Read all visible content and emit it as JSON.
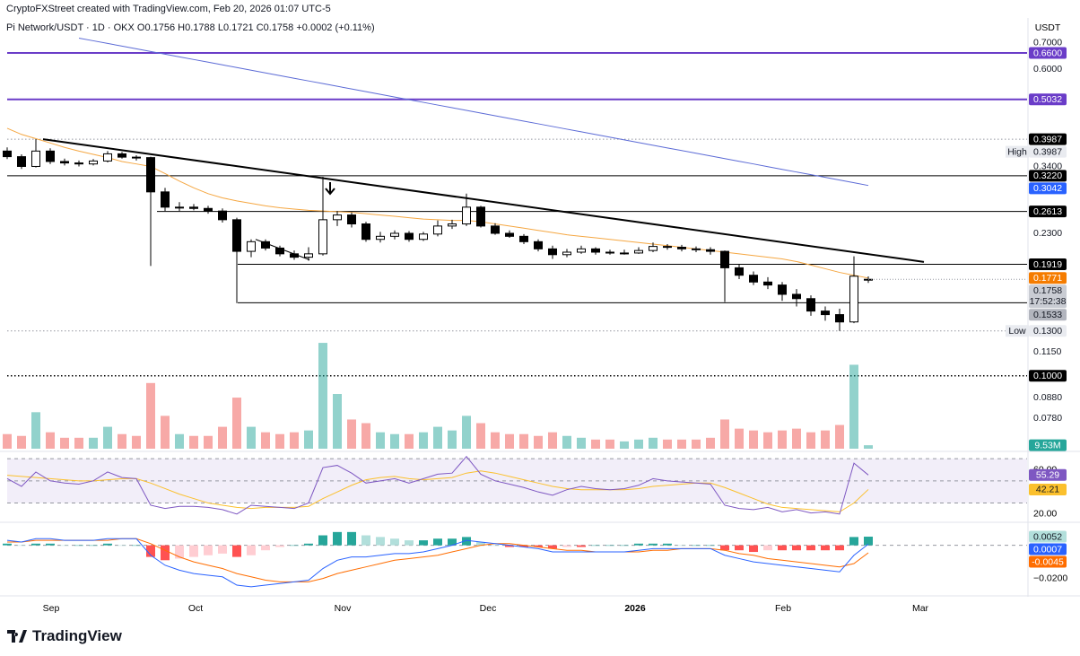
{
  "header": {
    "credit": "CryptoFXStreet created with TradingView.com, Feb 20, 2026 01:07 UTC-5",
    "symbol": "Pi Network/USDT · 1D · OKX",
    "ohlc_labels": [
      "O",
      "H",
      "L",
      "C"
    ],
    "change": "+0.0002 (+0.11%)",
    "currency": "USDT"
  },
  "chart_data": {
    "type": "candlestick",
    "scale": "log",
    "xticks": [
      "Sep",
      "Oct",
      "Nov",
      "Dec",
      "2026",
      "Feb",
      "Mar"
    ],
    "ylim": [
      0.0653,
      0.737
    ],
    "yticks": [
      {
        "value": 0.7,
        "label": "0.7000"
      },
      {
        "value": 0.6,
        "label": "0.6000"
      },
      {
        "value": 0.34,
        "label": "0.3400"
      },
      {
        "value": 0.23,
        "label": "0.2300"
      },
      {
        "value": 0.115,
        "label": "0.1150"
      },
      {
        "value": 0.088,
        "label": "0.0880"
      },
      {
        "value": 0.078,
        "label": "0.0780"
      }
    ],
    "candle_colors": {
      "up": "#ffffff",
      "down": "#000000",
      "outline": "#000000"
    },
    "candles": {
      "open": [
        0.372,
        0.36,
        0.34,
        0.372,
        0.35,
        0.347,
        0.345,
        0.351,
        0.366,
        0.359,
        0.358,
        0.293,
        0.268,
        0.268,
        0.266,
        0.262,
        0.249,
        0.207,
        0.219,
        0.211,
        0.204,
        0.2,
        0.204,
        0.249,
        0.256,
        0.243,
        0.222,
        0.226,
        0.23,
        0.222,
        0.229,
        0.24,
        0.243,
        0.268,
        0.24,
        0.23,
        0.226,
        0.219,
        0.21,
        0.203,
        0.206,
        0.21,
        0.206,
        0.205,
        0.205,
        0.208,
        0.213,
        0.212,
        0.21,
        0.209,
        0.207,
        0.188,
        0.18,
        0.173,
        0.17,
        0.161,
        0.157,
        0.146,
        0.143,
        0.137,
        0.1756
      ],
      "high": [
        0.38,
        0.365,
        0.399,
        0.378,
        0.356,
        0.352,
        0.355,
        0.372,
        0.37,
        0.363,
        0.36,
        0.3,
        0.276,
        0.273,
        0.27,
        0.266,
        0.252,
        0.222,
        0.222,
        0.214,
        0.208,
        0.212,
        0.32,
        0.262,
        0.26,
        0.246,
        0.232,
        0.234,
        0.233,
        0.232,
        0.248,
        0.249,
        0.29,
        0.27,
        0.244,
        0.234,
        0.229,
        0.222,
        0.214,
        0.21,
        0.214,
        0.212,
        0.209,
        0.209,
        0.212,
        0.218,
        0.216,
        0.215,
        0.213,
        0.212,
        0.208,
        0.192,
        0.184,
        0.178,
        0.173,
        0.166,
        0.16,
        0.15,
        0.148,
        0.201,
        0.1788
      ],
      "low": [
        0.355,
        0.335,
        0.338,
        0.345,
        0.342,
        0.34,
        0.342,
        0.348,
        0.356,
        0.352,
        0.19,
        0.262,
        0.262,
        0.263,
        0.258,
        0.245,
        0.153,
        0.2,
        0.208,
        0.201,
        0.197,
        0.196,
        0.202,
        0.24,
        0.238,
        0.219,
        0.218,
        0.222,
        0.219,
        0.22,
        0.226,
        0.236,
        0.24,
        0.238,
        0.228,
        0.224,
        0.216,
        0.207,
        0.198,
        0.2,
        0.204,
        0.203,
        0.203,
        0.203,
        0.204,
        0.206,
        0.209,
        0.207,
        0.206,
        0.203,
        0.154,
        0.176,
        0.17,
        0.166,
        0.155,
        0.15,
        0.142,
        0.138,
        0.13,
        0.136,
        0.1721
      ],
      "close": [
        0.36,
        0.34,
        0.372,
        0.35,
        0.347,
        0.345,
        0.351,
        0.366,
        0.359,
        0.358,
        0.293,
        0.268,
        0.268,
        0.266,
        0.262,
        0.249,
        0.207,
        0.219,
        0.211,
        0.204,
        0.2,
        0.204,
        0.249,
        0.256,
        0.243,
        0.222,
        0.226,
        0.23,
        0.222,
        0.229,
        0.24,
        0.243,
        0.268,
        0.24,
        0.23,
        0.226,
        0.219,
        0.21,
        0.203,
        0.206,
        0.21,
        0.206,
        0.205,
        0.205,
        0.208,
        0.213,
        0.212,
        0.21,
        0.209,
        0.207,
        0.188,
        0.18,
        0.173,
        0.17,
        0.161,
        0.157,
        0.146,
        0.143,
        0.137,
        0.179,
        0.1758
      ]
    },
    "countdown": "17:52:38",
    "last_tag_color": "#c9ccd3",
    "moving_averages": [
      {
        "color": "#f5a742",
        "values": [
          0.425,
          0.41,
          0.4,
          0.39,
          0.38,
          0.372,
          0.365,
          0.358,
          0.35,
          0.345,
          0.34,
          0.326,
          0.312,
          0.3,
          0.29,
          0.283,
          0.278,
          0.274,
          0.27,
          0.267,
          0.265,
          0.263,
          0.262,
          0.261,
          0.26,
          0.258,
          0.256,
          0.254,
          0.252,
          0.25,
          0.249,
          0.248,
          0.248,
          0.246,
          0.243,
          0.24,
          0.237,
          0.234,
          0.231,
          0.228,
          0.226,
          0.224,
          0.222,
          0.22,
          0.218,
          0.216,
          0.214,
          0.212,
          0.21,
          0.208,
          0.206,
          0.204,
          0.202,
          0.2,
          0.198,
          0.195,
          0.191,
          0.187,
          0.183,
          0.18,
          0.1771
        ],
        "tag_color": "#f57c00"
      },
      {
        "color": "#5c6bd6",
        "values": [
          null,
          null,
          null,
          null,
          null,
          0.72,
          0.7088,
          0.6978,
          0.687,
          0.6763,
          0.6658,
          0.6555,
          0.6453,
          0.6353,
          0.6254,
          0.6157,
          0.6061,
          0.5967,
          0.5874,
          0.5783,
          0.5693,
          0.5605,
          0.5518,
          0.5432,
          0.5348,
          0.5265,
          0.5183,
          0.5102,
          0.5023,
          0.4945,
          0.4868,
          0.4793,
          0.4718,
          0.4645,
          0.4573,
          0.4502,
          0.4432,
          0.4363,
          0.4295,
          0.4228,
          0.4163,
          0.4098,
          0.4034,
          0.3972,
          0.391,
          0.3849,
          0.3789,
          0.3731,
          0.3673,
          0.3616,
          0.3559,
          0.3504,
          0.345,
          0.3396,
          0.3343,
          0.3291,
          0.324,
          0.319,
          0.314,
          0.3091,
          0.3042
        ],
        "tag_color": "#2962ff"
      }
    ],
    "trendlines": [
      {
        "color": "#000000",
        "values": [
          0.3987,
          0.1946
        ]
      },
      {
        "color": "#000000",
        "values": [
          0.222,
          0.197
        ]
      }
    ],
    "levels": [
      {
        "value": 0.66,
        "label": "0.6600",
        "color": "#6a3cc8",
        "line": "solid",
        "tag_bg": "#6a3cc8",
        "tag_text": "#ffffff"
      },
      {
        "value": 0.5032,
        "label": "0.5032",
        "color": "#6a3cc8",
        "line": "solid",
        "tag_bg": "#6a3cc8",
        "tag_text": "#ffffff"
      },
      {
        "value": 0.3987,
        "label": "0.3987",
        "color": "#000000",
        "line": "none",
        "tag_bg": "#000000",
        "tag_text": "#ffffff"
      },
      {
        "value": 0.3987,
        "label": "0.3987",
        "color": "#9598a1",
        "line": "dotted",
        "tag": "High",
        "tag_bg": "#e9ebf0",
        "tag_text": "#131722"
      },
      {
        "value": 0.322,
        "label": "0.3220",
        "color": "#000000",
        "line": "solid",
        "tag_bg": "#000000",
        "tag_text": "#ffffff"
      },
      {
        "value": 0.2613,
        "label": "0.2613",
        "color": "#000000",
        "line": "solid",
        "tag_bg": "#000000",
        "tag_text": "#ffffff"
      },
      {
        "value": 0.1919,
        "label": "0.1919",
        "color": "#000000",
        "line": "solid",
        "tag_bg": "#000000",
        "tag_text": "#ffffff"
      },
      {
        "value": 0.1533,
        "label": "0.1533",
        "color": "#000000",
        "line": "solid",
        "tag_bg": "#b2b5be",
        "tag_text": "#131722"
      },
      {
        "value": 0.13,
        "label": "0.1300",
        "color": "#9598a1",
        "line": "dotted",
        "tag": "Low",
        "tag_bg": "#e9ebf0",
        "tag_text": "#131722"
      },
      {
        "value": 0.1,
        "label": "0.1000",
        "color": "#000000",
        "line": "dotted",
        "tag_bg": "#000000",
        "tag_text": "#ffffff"
      }
    ],
    "volume": {
      "ylim": [
        0,
        300
      ],
      "up_color": "rgba(38,166,154,0.5)",
      "down_color": "rgba(239,83,80,0.5)",
      "tag_color": "#26a69a",
      "last_label": "9.53M",
      "values": [
        40,
        35,
        100,
        45,
        30,
        30,
        30,
        60,
        40,
        35,
        180,
        90,
        40,
        35,
        35,
        60,
        140,
        60,
        45,
        40,
        45,
        50,
        290,
        150,
        80,
        70,
        45,
        40,
        40,
        45,
        60,
        50,
        90,
        70,
        45,
        40,
        40,
        35,
        45,
        35,
        30,
        25,
        25,
        20,
        25,
        30,
        25,
        25,
        25,
        30,
        80,
        55,
        50,
        45,
        50,
        55,
        45,
        50,
        65,
        230,
        9.53
      ]
    },
    "rsi": {
      "ylim": [
        15,
        75
      ],
      "yticks": [
        {
          "value": 60,
          "label": "60.00"
        },
        {
          "value": 20,
          "label": "20.00"
        }
      ],
      "band": [
        30,
        70
      ],
      "midline": 50,
      "color": "#7e57c2",
      "ma_color": "#fbc02d",
      "ma_tag_text": "#131722",
      "band_color": "rgba(126,87,194,0.1)",
      "values": [
        52,
        45,
        58,
        50,
        48,
        47,
        50,
        58,
        53,
        52,
        28,
        25,
        27,
        27,
        26,
        24,
        20,
        28,
        27,
        26,
        25,
        30,
        62,
        64,
        57,
        48,
        50,
        52,
        48,
        52,
        56,
        57,
        72,
        56,
        50,
        47,
        44,
        40,
        37,
        42,
        45,
        43,
        42,
        43,
        46,
        52,
        50,
        49,
        48,
        47,
        28,
        25,
        24,
        26,
        22,
        24,
        21,
        22,
        20,
        66,
        55.29
      ],
      "ma": [
        55,
        54,
        53,
        52,
        51,
        50,
        50,
        51,
        52,
        52,
        48,
        43,
        38,
        34,
        30,
        28,
        26,
        25,
        26,
        26,
        26,
        27,
        34,
        40,
        46,
        51,
        53,
        54,
        52,
        51,
        52,
        53,
        57,
        59,
        57,
        54,
        51,
        48,
        45,
        43,
        42,
        42,
        42,
        42,
        43,
        45,
        46,
        47,
        48,
        48,
        44,
        39,
        34,
        29,
        26,
        25,
        24,
        23,
        22,
        30,
        42.21
      ]
    },
    "macd": {
      "ylim": [
        -0.0283,
        0.0117
      ],
      "yticks": [
        {
          "value": -0.02,
          "label": "−0.0200"
        }
      ],
      "macd_color": "#2962ff",
      "signal_color": "#ff6d00",
      "hist_colors": [
        "#26a69a",
        "#b2dfdb",
        "#ff5252",
        "#ffcdd2"
      ],
      "macd": [
        0.003,
        0.002,
        0.004,
        0.004,
        0.003,
        0.003,
        0.003,
        0.004,
        0.004,
        0.004,
        -0.006,
        -0.012,
        -0.015,
        -0.017,
        -0.018,
        -0.019,
        -0.024,
        -0.025,
        -0.024,
        -0.023,
        -0.022,
        -0.021,
        -0.014,
        -0.009,
        -0.007,
        -0.007,
        -0.006,
        -0.005,
        -0.005,
        -0.004,
        -0.002,
        0,
        0.003,
        0.002,
        0.001,
        0,
        -0.001,
        -0.002,
        -0.004,
        -0.004,
        -0.004,
        -0.004,
        -0.004,
        -0.004,
        -0.003,
        -0.002,
        -0.002,
        -0.002,
        -0.002,
        -0.002,
        -0.006,
        -0.008,
        -0.01,
        -0.011,
        -0.012,
        -0.013,
        -0.014,
        -0.015,
        -0.016,
        -0.006,
        0.0007
      ],
      "signal": [
        0.002,
        0.002,
        0.003,
        0.003,
        0.003,
        0.003,
        0.003,
        0.003,
        0.004,
        0.004,
        0.001,
        -0.003,
        -0.007,
        -0.01,
        -0.012,
        -0.014,
        -0.017,
        -0.019,
        -0.021,
        -0.022,
        -0.022,
        -0.022,
        -0.02,
        -0.017,
        -0.015,
        -0.013,
        -0.011,
        -0.009,
        -0.008,
        -0.007,
        -0.006,
        -0.004,
        -0.002,
        0,
        0.001,
        0.001,
        0,
        -0.001,
        -0.002,
        -0.003,
        -0.003,
        -0.004,
        -0.004,
        -0.004,
        -0.004,
        -0.003,
        -0.003,
        -0.002,
        -0.002,
        -0.002,
        -0.003,
        -0.005,
        -0.006,
        -0.008,
        -0.009,
        -0.01,
        -0.011,
        -0.012,
        -0.013,
        -0.011,
        -0.0045
      ],
      "histogram": [
        0.001,
        0,
        0.001,
        0.001,
        0,
        0,
        0,
        0.001,
        0,
        0,
        -0.007,
        -0.009,
        -0.008,
        -0.007,
        -0.006,
        -0.005,
        -0.007,
        -0.006,
        -0.003,
        -0.001,
        0,
        0.001,
        0.006,
        0.008,
        0.008,
        0.006,
        0.005,
        0.004,
        0.003,
        0.003,
        0.004,
        0.004,
        0.005,
        0.002,
        0,
        -0.001,
        -0.001,
        -0.001,
        -0.002,
        -0.001,
        -0.001,
        0,
        0,
        0,
        0.001,
        0.001,
        0.001,
        0,
        0,
        0,
        -0.003,
        -0.003,
        -0.004,
        -0.003,
        -0.003,
        -0.003,
        -0.003,
        -0.003,
        -0.003,
        0.005,
        0.0052
      ]
    }
  },
  "footer": {
    "brand": "TradingView"
  }
}
